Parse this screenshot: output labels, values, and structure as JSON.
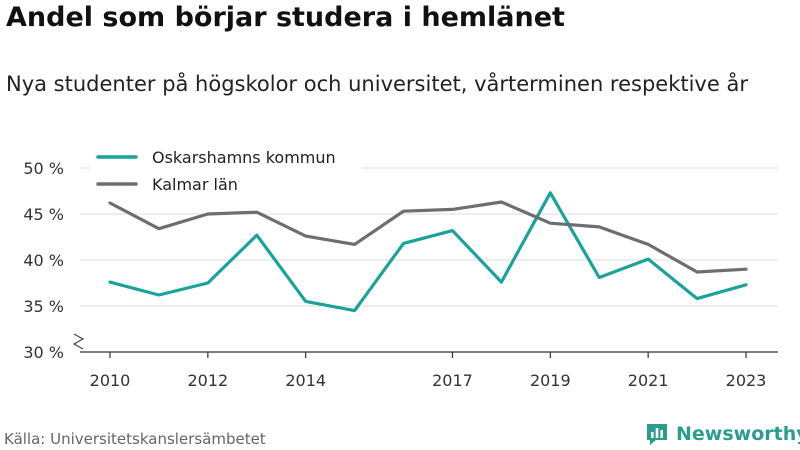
{
  "header": {
    "title": "Andel som börjar studera i hemlänet",
    "subtitle": "Nya studenter på högskolor och universitet, vårterminen respektive år"
  },
  "footer": {
    "source": "Källa: Universitetskanslersämbetet",
    "brand": "Newsworthy"
  },
  "colors": {
    "series_oskarshamn": "#1aa399",
    "series_kalmar": "#6e6d72",
    "gridline": "#dddddd",
    "axis": "#333333",
    "brand": "#2a9d8f"
  },
  "icons": {
    "brand_logo": "newsworthy-logo-icon"
  },
  "chart_data": {
    "type": "line",
    "title": "Andel som börjar studera i hemlänet",
    "subtitle": "Nya studenter på högskolor och universitet, vårterminen respektive år",
    "x": [
      2010,
      2011,
      2012,
      2013,
      2014,
      2015,
      2016,
      2017,
      2018,
      2019,
      2020,
      2021,
      2022,
      2023
    ],
    "x_tick_labels": [
      "2010",
      "2012",
      "2014",
      "2017",
      "2019",
      "2021",
      "2023"
    ],
    "x_tick_values": [
      2010,
      2012,
      2014,
      2017,
      2019,
      2021,
      2023
    ],
    "y_tick_values": [
      30,
      35,
      40,
      45,
      50
    ],
    "y_tick_labels": [
      "30 %",
      "35 %",
      "40 %",
      "45 %",
      "50 %"
    ],
    "ylim": [
      30,
      50
    ],
    "y_axis_break": true,
    "grid": true,
    "legend_position": "top-left",
    "series": [
      {
        "name": "Oskarshamns kommun",
        "color": "#1aa399",
        "values": [
          37.6,
          36.2,
          37.5,
          42.7,
          35.5,
          34.5,
          41.8,
          43.2,
          37.6,
          47.3,
          38.1,
          40.1,
          35.8,
          37.3
        ]
      },
      {
        "name": "Kalmar län",
        "color": "#6e6d72",
        "values": [
          46.2,
          43.4,
          45.0,
          45.2,
          42.6,
          41.7,
          45.3,
          45.5,
          46.3,
          44.0,
          43.6,
          41.7,
          38.7,
          39.0
        ]
      }
    ],
    "xlabel": "",
    "ylabel": ""
  }
}
